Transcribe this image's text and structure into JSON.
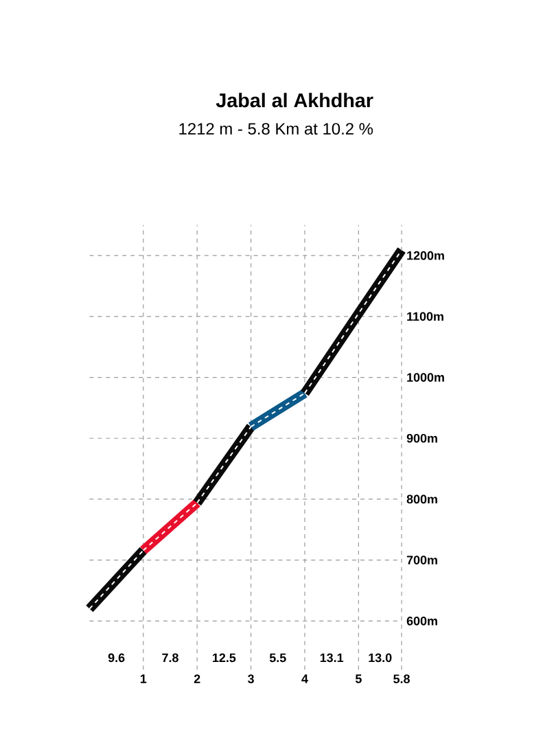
{
  "chart_data": {
    "type": "line",
    "title": "Jabal al Akhdhar",
    "subtitle": "1212 m - 5.8 Km at 10.2 %",
    "series": [
      {
        "color": "#0a0a0a",
        "x": [
          0,
          1
        ],
        "values": [
          620,
          716
        ]
      },
      {
        "color": "#e8102d",
        "x": [
          1,
          2
        ],
        "values": [
          716,
          794
        ]
      },
      {
        "color": "#0a0a0a",
        "x": [
          2,
          3
        ],
        "values": [
          794,
          919
        ]
      },
      {
        "color": "#0b5a8a",
        "x": [
          3,
          4
        ],
        "values": [
          919,
          974
        ]
      },
      {
        "color": "#0a0a0a",
        "x": [
          4,
          5,
          5.8
        ],
        "values": [
          974,
          1105,
          1209
        ]
      }
    ],
    "xlim": [
      0,
      5.8
    ],
    "xticks": [
      1,
      2,
      3,
      4,
      5,
      5.8
    ],
    "ylim": [
      520,
      1250
    ],
    "yticks": [
      {
        "value": 600,
        "label": "600m"
      },
      {
        "value": 700,
        "label": "700m"
      },
      {
        "value": 800,
        "label": "800m"
      },
      {
        "value": 900,
        "label": "900m"
      },
      {
        "value": 1000,
        "label": "1000m"
      },
      {
        "value": 1100,
        "label": "1100m"
      },
      {
        "value": 1200,
        "label": "1200m"
      }
    ],
    "grid": true,
    "marker": "none",
    "line_style": "solid",
    "annotations": [
      "9.6",
      "7.8",
      "12.5",
      "5.5",
      "13.1",
      "13.0"
    ]
  }
}
